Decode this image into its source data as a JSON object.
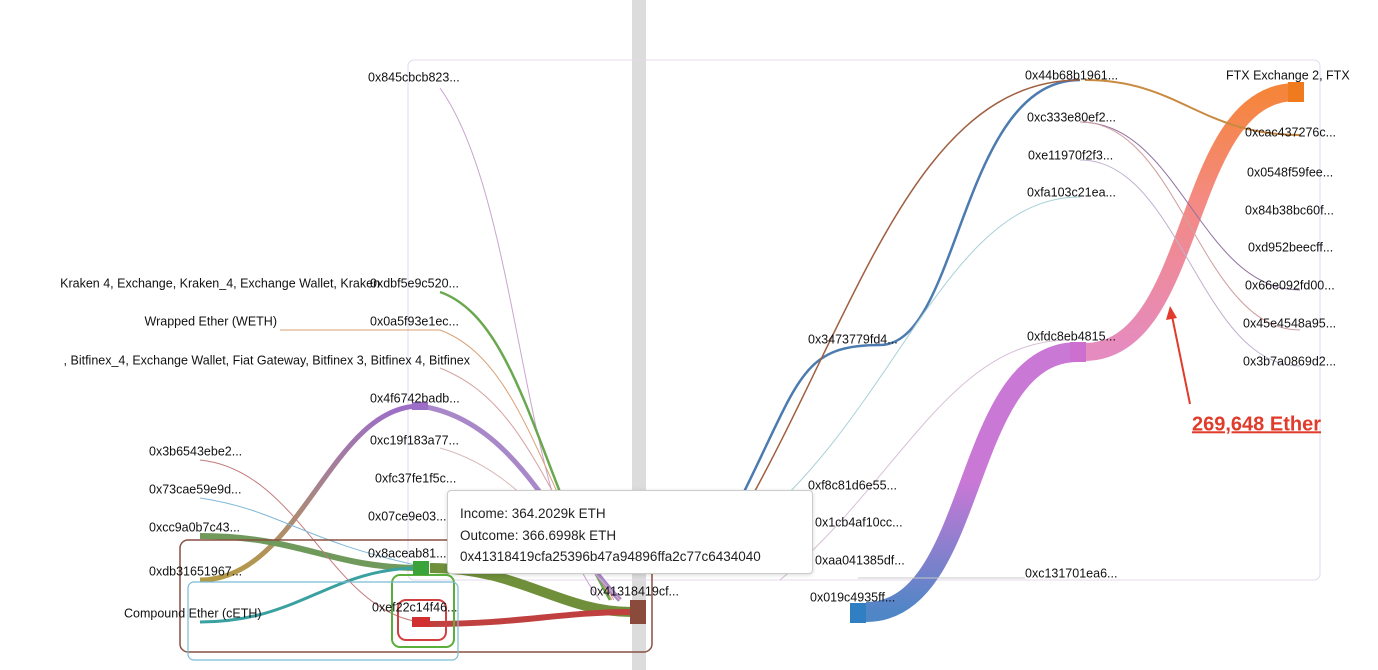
{
  "nodes": [
    {
      "label": "0x845cbcb823..."
    },
    {
      "label": "Kraken 4, Exchange, Kraken_4, Exchange Wallet, Kraken"
    },
    {
      "label": "0xdbf5e9c520..."
    },
    {
      "label": "Wrapped Ether (WETH)"
    },
    {
      "label": "0x0a5f93e1ec..."
    },
    {
      "label": ", Bitfinex_4, Exchange Wallet, Fiat Gateway, Bitfinex 3, Bitfinex 4, Bitfinex"
    },
    {
      "label": "0x4f6742badb..."
    },
    {
      "label": "0xc19f183a77..."
    },
    {
      "label": "0xfc37fe1f5c..."
    },
    {
      "label": "0x07ce9e03..."
    },
    {
      "label": "0x8aceab81..."
    },
    {
      "label": "0xef22c14f46..."
    },
    {
      "label": "0x3b6543ebe2..."
    },
    {
      "label": "0x73cae59e9d..."
    },
    {
      "label": "0xcc9a0b7c43..."
    },
    {
      "label": "0xdb31651967..."
    },
    {
      "label": "Compound Ether (cETH)"
    },
    {
      "label": "0x41318419cf..."
    },
    {
      "label": "0x3473779fd4..."
    },
    {
      "label": "0xf8c81d6e55..."
    },
    {
      "label": "0x1cb4af10cc..."
    },
    {
      "label": "0xaa041385df..."
    },
    {
      "label": "0x019c4935ff..."
    },
    {
      "label": "0xc131701ea6..."
    },
    {
      "label": "0x44b68b1961..."
    },
    {
      "label": "0xc333e80ef2..."
    },
    {
      "label": "0xe11970f2f3..."
    },
    {
      "label": "0xfa103c21ea..."
    },
    {
      "label": "0xfdc8eb4815..."
    },
    {
      "label": "FTX Exchange 2, FTX"
    },
    {
      "label": "0xcac437276c..."
    },
    {
      "label": "0x0548f59fee..."
    },
    {
      "label": "0x84b38bc60f..."
    },
    {
      "label": "0xd952beecff..."
    },
    {
      "label": "0x66e092fd00..."
    },
    {
      "label": "0x45e4548a95..."
    },
    {
      "label": "0x3b7a0869d2..."
    }
  ],
  "tooltip": {
    "lines": [
      "Income: 364.2029k ETH",
      "Outcome: 366.6998k ETH",
      "0x41318419cfa25396b47a94896ffa2c77c6434040"
    ]
  },
  "annotation": "269,648 Ether"
}
